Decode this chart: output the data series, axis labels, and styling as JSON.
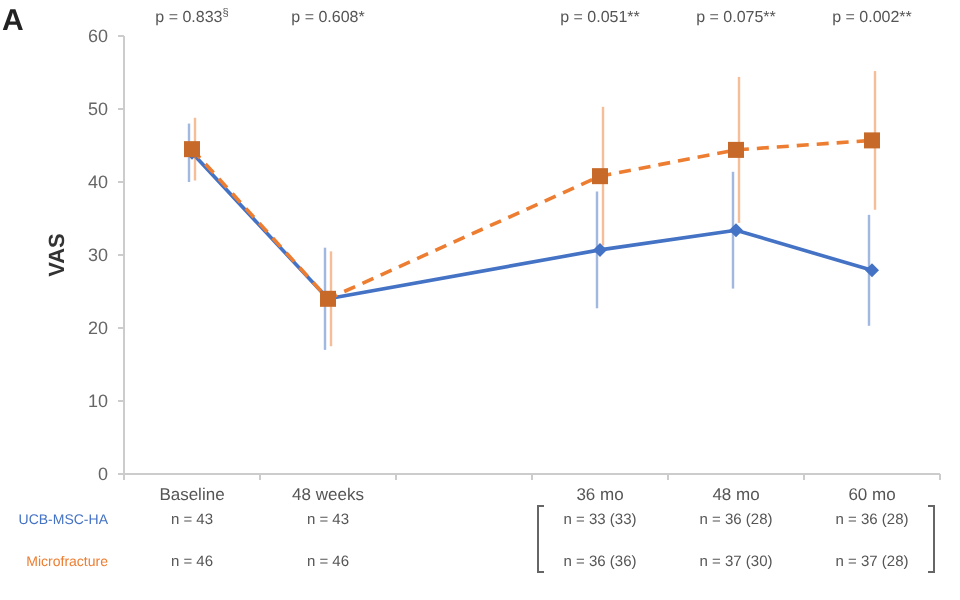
{
  "chart_data": {
    "type": "line",
    "ylabel": "VAS",
    "categories": [
      "Baseline",
      "48 weeks",
      null,
      "36 mo",
      "48 mo",
      "60 mo"
    ],
    "ylim": [
      0,
      60
    ],
    "yticks": [
      0,
      10,
      20,
      30,
      40,
      50,
      60
    ],
    "grid": false,
    "series": [
      {
        "name": "UCB-MSC-HA",
        "color": "#4472c4",
        "marker": "diamond",
        "line_style": "solid",
        "values": [
          44,
          24,
          null,
          30.7,
          33.4,
          27.9
        ],
        "errors": [
          4,
          7,
          null,
          8,
          8,
          7.6
        ]
      },
      {
        "name": "Microfracture",
        "color": "#ed7d31",
        "marker": "square",
        "line_style": "dashed",
        "values": [
          44.5,
          24,
          null,
          40.8,
          44.4,
          45.7
        ],
        "errors": [
          4.3,
          6.5,
          null,
          9.5,
          10,
          9.5
        ]
      }
    ],
    "annotations": [
      "A",
      "p = 0.833$^{§}$",
      "p = 0.608*",
      "p = 0.051**",
      "p = 0.075**",
      "p = 0.002**",
      "n = 43",
      "n = 43",
      "n = 33 (33)",
      "n = 36 (28)",
      "n = 36 (28)",
      "n = 46",
      "n = 46",
      "n = 36 (36)",
      "n = 37 (30)",
      "n = 37 (28)"
    ]
  }
}
